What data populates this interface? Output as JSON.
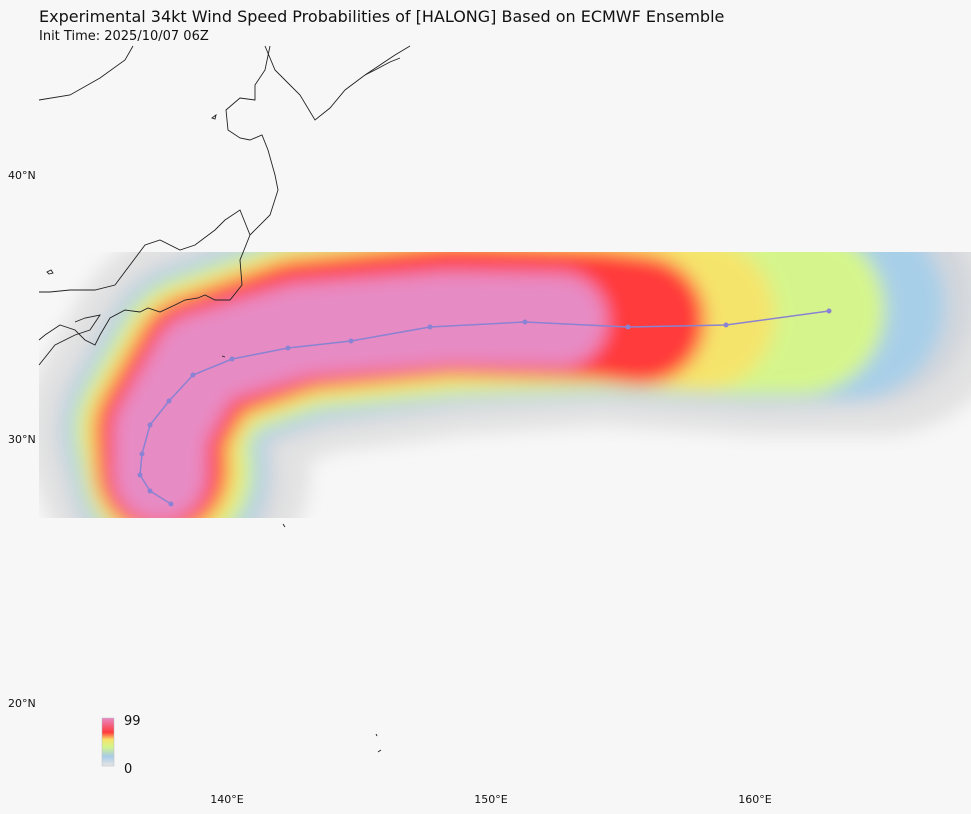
{
  "header": {
    "title": "Experimental 34kt Wind Speed Probabilities of [HALONG] Based on ECMWF Ensemble",
    "subtitle": "Init Time: 2025/10/07 06Z"
  },
  "map": {
    "lat_labels": [
      "40°N",
      "30°N",
      "20°N"
    ],
    "lon_labels": [
      "140°E",
      "150°E",
      "160°E"
    ]
  },
  "legend": {
    "max": "99",
    "min": "0"
  }
}
